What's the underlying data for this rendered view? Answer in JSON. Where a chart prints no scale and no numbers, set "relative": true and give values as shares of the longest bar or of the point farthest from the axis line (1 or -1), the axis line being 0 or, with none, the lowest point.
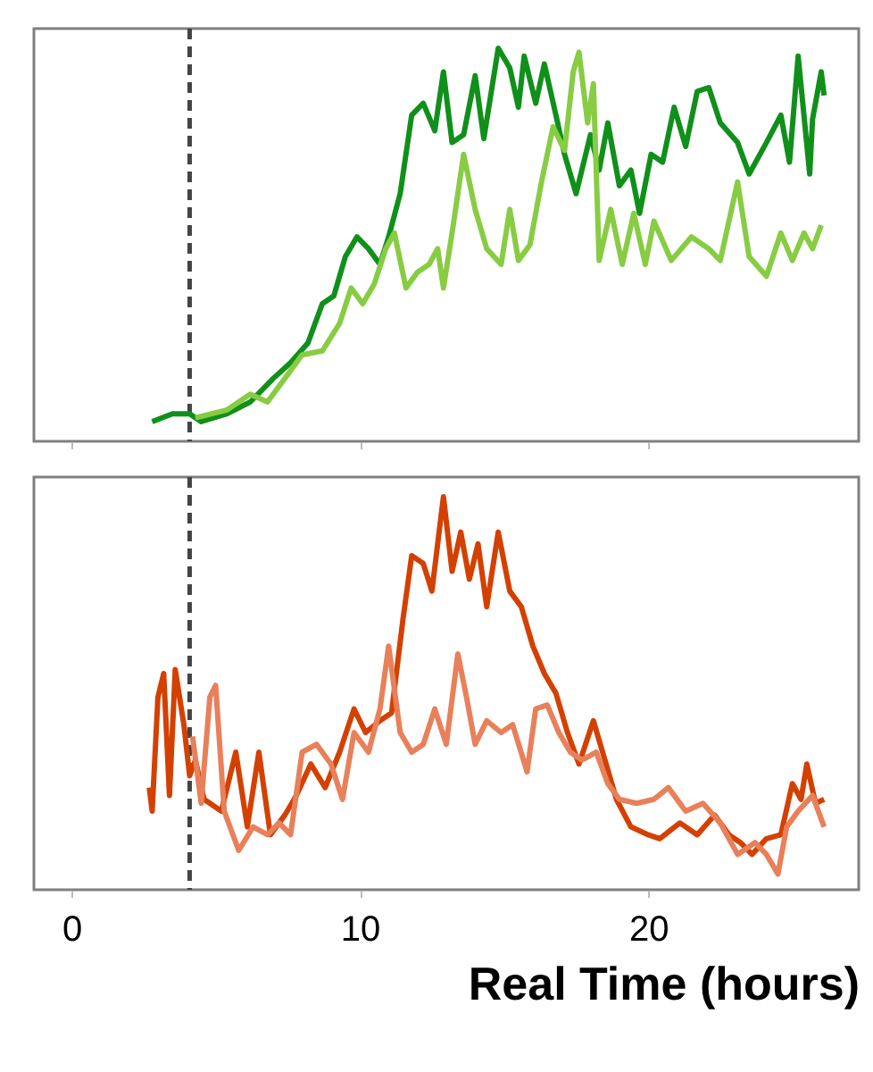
{
  "chart_data": [
    {
      "type": "line",
      "relative": true,
      "xlim": [
        -1.3,
        27.3
      ],
      "xticks": [
        0,
        10,
        20
      ],
      "tick_labels": false,
      "ref_lines": [
        {
          "axis": "x",
          "value": 4.1,
          "color": "#444444",
          "line_style": "dashed"
        }
      ],
      "series": [
        {
          "color": "#10901a",
          "x": [
            2.8,
            3.5,
            4.1,
            4.5,
            5.4,
            6.2,
            7.0,
            7.6,
            8.2,
            8.7,
            9.1,
            9.5,
            9.9,
            10.3,
            10.7,
            11.0,
            11.4,
            11.8,
            12.2,
            12.6,
            12.9,
            13.2,
            13.6,
            14.0,
            14.3,
            14.8,
            15.2,
            15.5,
            15.7,
            16.1,
            16.4,
            16.8,
            17.1,
            17.5,
            18.0,
            18.3,
            18.6,
            19.0,
            19.4,
            19.7,
            20.1,
            20.5,
            20.9,
            21.3,
            21.7,
            22.1,
            22.5,
            23.1,
            23.5,
            24.1,
            24.6,
            24.9,
            25.2,
            25.6,
            25.7,
            26.0,
            26.1
          ],
          "values": [
            0.05,
            0.07,
            0.07,
            0.05,
            0.07,
            0.1,
            0.16,
            0.2,
            0.25,
            0.35,
            0.37,
            0.47,
            0.52,
            0.49,
            0.45,
            0.52,
            0.63,
            0.83,
            0.86,
            0.79,
            0.94,
            0.76,
            0.78,
            0.93,
            0.77,
            1.0,
            0.95,
            0.85,
            0.98,
            0.86,
            0.96,
            0.83,
            0.73,
            0.63,
            0.78,
            0.69,
            0.81,
            0.65,
            0.69,
            0.58,
            0.73,
            0.71,
            0.85,
            0.75,
            0.89,
            0.9,
            0.81,
            0.76,
            0.68,
            0.76,
            0.83,
            0.71,
            0.98,
            0.68,
            0.82,
            0.94,
            0.88
          ]
        },
        {
          "color": "#88cc44",
          "x": [
            4.3,
            5.4,
            6.2,
            6.8,
            7.4,
            8.0,
            8.7,
            9.3,
            9.7,
            10.1,
            10.5,
            10.9,
            11.2,
            11.6,
            12.0,
            12.4,
            12.7,
            12.9,
            13.2,
            13.6,
            14.0,
            14.4,
            14.9,
            15.2,
            15.5,
            15.9,
            16.3,
            16.7,
            17.1,
            17.4,
            17.6,
            17.9,
            18.1,
            18.3,
            18.7,
            19.1,
            19.5,
            19.9,
            20.2,
            20.8,
            21.5,
            22.1,
            22.5,
            23.1,
            23.5,
            24.1,
            24.6,
            25.0,
            25.4,
            25.7,
            26.0
          ],
          "values": [
            0.06,
            0.08,
            0.12,
            0.1,
            0.16,
            0.22,
            0.23,
            0.3,
            0.39,
            0.35,
            0.4,
            0.49,
            0.53,
            0.39,
            0.43,
            0.45,
            0.49,
            0.39,
            0.53,
            0.73,
            0.59,
            0.49,
            0.45,
            0.59,
            0.46,
            0.5,
            0.66,
            0.8,
            0.74,
            0.94,
            0.99,
            0.81,
            0.91,
            0.46,
            0.59,
            0.45,
            0.58,
            0.45,
            0.56,
            0.46,
            0.52,
            0.49,
            0.46,
            0.66,
            0.47,
            0.42,
            0.53,
            0.46,
            0.53,
            0.49,
            0.55
          ]
        }
      ]
    },
    {
      "type": "line",
      "relative": true,
      "xlim": [
        -1.3,
        27.3
      ],
      "xticks": [
        0,
        10,
        20
      ],
      "tick_labels": "x",
      "xlabel": "Real Time (hours)",
      "ref_lines": [
        {
          "axis": "x",
          "value": 4.1,
          "color": "#444444",
          "line_style": "dashed"
        }
      ],
      "series": [
        {
          "color": "#d44000",
          "x": [
            2.7,
            2.8,
            3.0,
            3.2,
            3.4,
            3.6,
            3.9,
            4.1,
            4.3,
            4.6,
            5.2,
            5.7,
            6.1,
            6.5,
            6.9,
            7.4,
            7.8,
            8.3,
            8.8,
            9.3,
            9.8,
            10.2,
            10.7,
            11.1,
            11.5,
            11.8,
            12.2,
            12.5,
            12.9,
            13.2,
            13.5,
            13.8,
            14.1,
            14.4,
            14.8,
            15.2,
            15.6,
            16.0,
            16.4,
            16.8,
            17.2,
            17.6,
            18.1,
            18.5,
            18.9,
            19.4,
            20.0,
            20.4,
            21.1,
            21.7,
            22.3,
            22.8,
            23.2,
            23.6,
            24.1,
            24.6,
            25.0,
            25.3,
            25.5,
            25.8,
            26.1
          ],
          "values": [
            0.26,
            0.2,
            0.49,
            0.55,
            0.24,
            0.56,
            0.42,
            0.29,
            0.33,
            0.23,
            0.2,
            0.35,
            0.16,
            0.35,
            0.14,
            0.19,
            0.24,
            0.32,
            0.26,
            0.35,
            0.46,
            0.4,
            0.43,
            0.45,
            0.69,
            0.85,
            0.83,
            0.76,
            1.0,
            0.81,
            0.91,
            0.79,
            0.88,
            0.72,
            0.91,
            0.76,
            0.72,
            0.62,
            0.55,
            0.5,
            0.4,
            0.32,
            0.43,
            0.33,
            0.23,
            0.16,
            0.14,
            0.13,
            0.17,
            0.14,
            0.19,
            0.14,
            0.12,
            0.09,
            0.13,
            0.14,
            0.27,
            0.23,
            0.32,
            0.22,
            0.23
          ]
        },
        {
          "color": "#e8805a",
          "x": [
            4.2,
            4.5,
            4.8,
            5.0,
            5.3,
            5.8,
            6.3,
            6.8,
            7.2,
            7.6,
            8.0,
            8.5,
            9.0,
            9.4,
            9.8,
            10.3,
            10.7,
            11.0,
            11.4,
            11.8,
            12.2,
            12.6,
            13.0,
            13.4,
            13.7,
            14.0,
            14.4,
            14.9,
            15.3,
            15.8,
            16.1,
            16.5,
            16.9,
            17.3,
            17.7,
            18.2,
            18.6,
            19.0,
            19.6,
            20.2,
            20.7,
            21.3,
            21.9,
            22.5,
            23.1,
            23.7,
            24.1,
            24.5,
            24.8,
            25.2,
            25.7,
            26.1
          ],
          "values": [
            0.39,
            0.22,
            0.49,
            0.52,
            0.2,
            0.1,
            0.16,
            0.14,
            0.17,
            0.14,
            0.35,
            0.37,
            0.32,
            0.23,
            0.4,
            0.35,
            0.46,
            0.62,
            0.4,
            0.35,
            0.37,
            0.46,
            0.37,
            0.6,
            0.49,
            0.37,
            0.43,
            0.4,
            0.42,
            0.3,
            0.46,
            0.47,
            0.4,
            0.35,
            0.33,
            0.35,
            0.27,
            0.23,
            0.22,
            0.23,
            0.26,
            0.2,
            0.22,
            0.17,
            0.09,
            0.12,
            0.09,
            0.04,
            0.16,
            0.2,
            0.24,
            0.16
          ]
        }
      ]
    }
  ]
}
